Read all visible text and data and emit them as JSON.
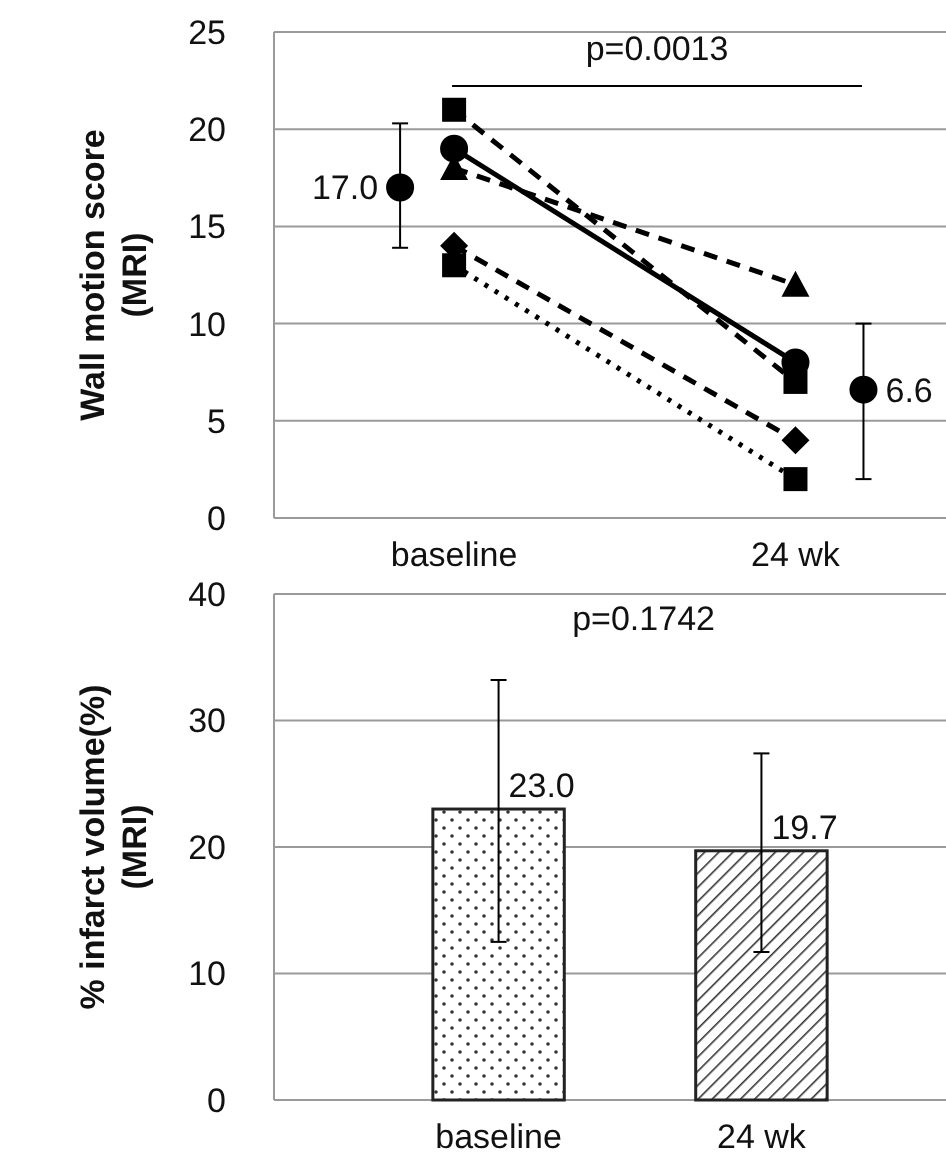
{
  "chart_data": [
    {
      "type": "line",
      "ylabel": "Wall motion score\n(MRI)",
      "categories": [
        "baseline",
        "24 wk"
      ],
      "ylim": [
        0,
        25
      ],
      "yticks": [
        0,
        5,
        10,
        15,
        20,
        25
      ],
      "grid": "y",
      "annotations": [
        "p=0.0013"
      ],
      "series": [
        {
          "values": [
            19,
            8
          ],
          "color": "#000000",
          "marker": "circle",
          "line_style": "solid"
        },
        {
          "values": [
            18,
            12
          ],
          "color": "#000000",
          "marker": "triangle",
          "line_style": "dashed"
        },
        {
          "values": [
            21,
            7
          ],
          "color": "#000000",
          "marker": "square",
          "line_style": "dashed"
        },
        {
          "values": [
            14,
            4
          ],
          "color": "#000000",
          "marker": "diamond",
          "line_style": "dashed"
        },
        {
          "values": [
            13,
            2
          ],
          "color": "#000000",
          "marker": "square",
          "line_style": "dotted"
        },
        {
          "type": "scatter",
          "values": [
            17.0,
            6.6
          ],
          "errors": [
            [
              13.9,
              20.3
            ],
            [
              2.0,
              10.0
            ]
          ],
          "value_labels": [
            "17.0",
            "6.6"
          ],
          "color": "#000000",
          "marker": "circle"
        }
      ]
    },
    {
      "type": "bar",
      "ylabel": "% infarct volume(%)\n(MRI)",
      "categories": [
        "baseline",
        "24 wk"
      ],
      "values": [
        23.0,
        19.7
      ],
      "value_labels": [
        "23.0",
        "19.7"
      ],
      "errors": [
        [
          12.5,
          33.2
        ],
        [
          11.7,
          27.4
        ]
      ],
      "colors": [
        "#ffffff",
        "#ffffff"
      ],
      "ylim": [
        0,
        40
      ],
      "yticks": [
        0,
        10,
        20,
        30,
        40
      ],
      "grid": "y",
      "annotations": [
        "p=0.1742"
      ]
    }
  ]
}
